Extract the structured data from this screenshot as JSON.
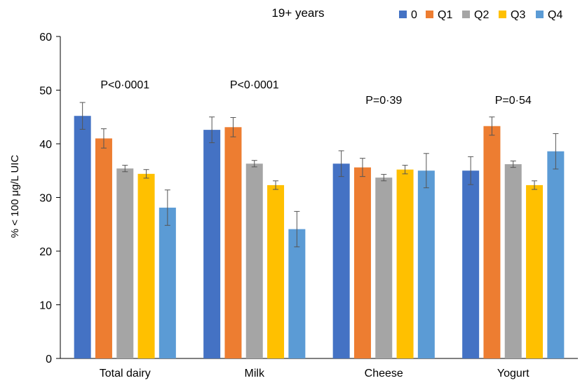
{
  "chart_data": {
    "type": "bar",
    "title": "19+ years",
    "xlabel": "",
    "ylabel": "% < 100 μg/L UIC",
    "ylim": [
      0,
      60
    ],
    "yticks": [
      0,
      10,
      20,
      30,
      40,
      50,
      60
    ],
    "grid": false,
    "legend_position": "top-right",
    "categories": [
      "Total dairy",
      "Milk",
      "Cheese",
      "Yogurt"
    ],
    "series": [
      {
        "name": "0",
        "color": "#4472C4",
        "values": [
          45.2,
          42.6,
          36.3,
          35.0
        ],
        "error": [
          2.5,
          2.4,
          2.4,
          2.6
        ]
      },
      {
        "name": "Q1",
        "color": "#ED7D31",
        "values": [
          41.0,
          43.1,
          35.6,
          43.3
        ],
        "error": [
          1.8,
          1.8,
          1.7,
          1.7
        ]
      },
      {
        "name": "Q2",
        "color": "#A5A5A5",
        "values": [
          35.4,
          36.3,
          33.7,
          36.2
        ],
        "error": [
          0.6,
          0.6,
          0.6,
          0.6
        ]
      },
      {
        "name": "Q3",
        "color": "#FFC000",
        "values": [
          34.4,
          32.3,
          35.2,
          32.3
        ],
        "error": [
          0.8,
          0.8,
          0.8,
          0.8
        ]
      },
      {
        "name": "Q4",
        "color": "#5B9BD5",
        "values": [
          28.1,
          24.1,
          35.0,
          38.6
        ],
        "error": [
          3.3,
          3.3,
          3.2,
          3.3
        ]
      }
    ],
    "annotations": [
      "P<0·0001",
      "P<0·0001",
      "P=0·39",
      "P=0·54"
    ]
  }
}
